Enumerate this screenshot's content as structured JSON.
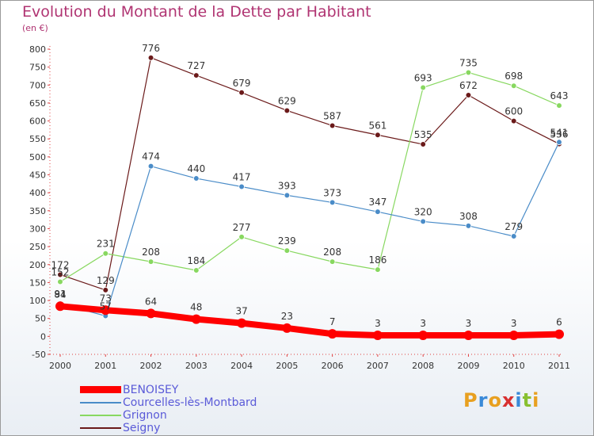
{
  "title": "Evolution du Montant de la Dette par Habitant",
  "subtitle": "(en €)",
  "brand": "Proxiti",
  "chart_data": {
    "type": "line",
    "title": "Evolution du Montant de la Dette par Habitant",
    "subtitle": "(en €)",
    "xlabel": "",
    "ylabel": "",
    "x": [
      2000,
      2001,
      2002,
      2003,
      2004,
      2005,
      2006,
      2007,
      2008,
      2009,
      2010,
      2011
    ],
    "ylim": [
      -50,
      800
    ],
    "yticks": [
      -50,
      0,
      50,
      100,
      150,
      200,
      250,
      300,
      350,
      400,
      450,
      500,
      550,
      600,
      650,
      700,
      750,
      800
    ],
    "grid": false,
    "legend_position": "bottom-left",
    "series": [
      {
        "name": "Seigny",
        "color": "#6b1a1a",
        "values": [
          172,
          129,
          776,
          727,
          679,
          629,
          587,
          561,
          535,
          672,
          600,
          536
        ]
      },
      {
        "name": "Grignon",
        "color": "#88d860",
        "values": [
          152,
          231,
          208,
          184,
          277,
          239,
          208,
          186,
          693,
          735,
          698,
          643
        ]
      },
      {
        "name": "Courcelles-lès-Montbard",
        "color": "#4a8cc8",
        "values": [
          91,
          57,
          474,
          440,
          417,
          393,
          373,
          347,
          320,
          308,
          279,
          541
        ]
      },
      {
        "name": "BENOISEY",
        "color": "#ff0000",
        "values": [
          84,
          73,
          64,
          48,
          37,
          23,
          7,
          3,
          3,
          3,
          3,
          6
        ]
      }
    ],
    "legend": [
      "BENOISEY",
      "Courcelles-lès-Montbard",
      "Grignon",
      "Seigny"
    ]
  }
}
